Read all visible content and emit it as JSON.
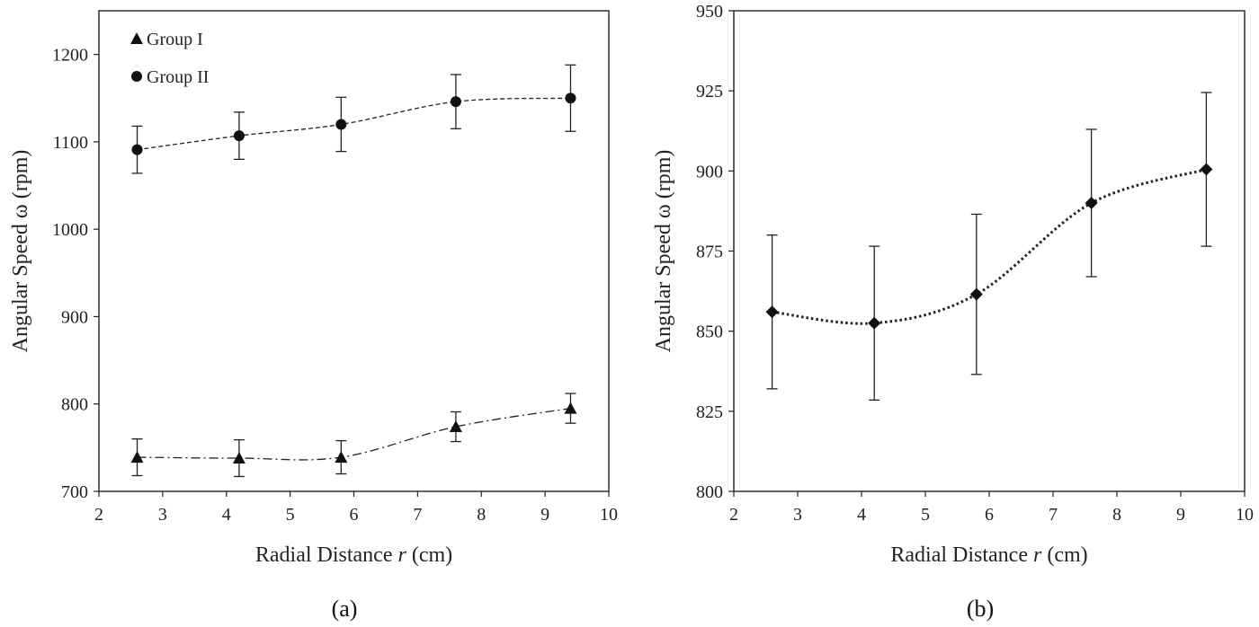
{
  "chart_data": [
    {
      "type": "scatter",
      "panel_label": "(a)",
      "xlabel_main": "Radial Distance ",
      "xlabel_var": "r",
      "xlabel_unit": " (cm)",
      "ylabel": "Angular Speed ω (rpm)",
      "xlim": [
        2,
        10
      ],
      "ylim": [
        700,
        1250
      ],
      "xticks": [
        2,
        3,
        4,
        5,
        6,
        7,
        8,
        9,
        10
      ],
      "yticks": [
        700,
        800,
        900,
        1000,
        1100,
        1200
      ],
      "legend_position": "top-left",
      "series": [
        {
          "name": "Group I",
          "marker": "triangle",
          "line_style": "dash-dot",
          "x": [
            2.6,
            4.2,
            5.8,
            7.6,
            9.4
          ],
          "y": [
            739,
            738,
            739,
            774,
            795
          ],
          "err": [
            21,
            21,
            19,
            17,
            17
          ]
        },
        {
          "name": "Group II",
          "marker": "circle",
          "line_style": "dashed",
          "x": [
            2.6,
            4.2,
            5.8,
            7.6,
            9.4
          ],
          "y": [
            1091,
            1107,
            1120,
            1146,
            1150
          ],
          "err": [
            27,
            27,
            31,
            31,
            38
          ]
        }
      ]
    },
    {
      "type": "scatter",
      "panel_label": "(b)",
      "xlabel_main": "Radial Distance ",
      "xlabel_var": "r",
      "xlabel_unit": " (cm)",
      "ylabel": "Angular Speed ω (rpm)",
      "xlim": [
        2,
        10
      ],
      "ylim": [
        800,
        950
      ],
      "xticks": [
        2,
        3,
        4,
        5,
        6,
        7,
        8,
        9,
        10
      ],
      "yticks": [
        800,
        825,
        850,
        875,
        900,
        925,
        950
      ],
      "series": [
        {
          "name": "",
          "marker": "diamond",
          "line_style": "dotted",
          "x": [
            2.6,
            4.2,
            5.8,
            7.6,
            9.4
          ],
          "y": [
            856,
            852.5,
            861.5,
            890,
            900.5
          ],
          "err": [
            24,
            24,
            25,
            23,
            24
          ]
        }
      ]
    }
  ]
}
